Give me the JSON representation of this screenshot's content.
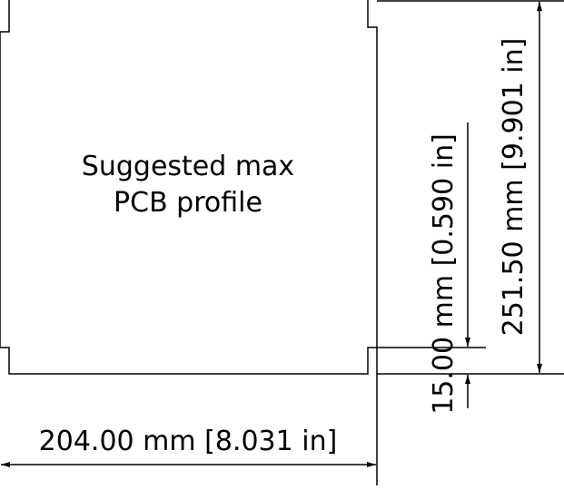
{
  "profile": {
    "label_lines": [
      "Suggested max",
      "PCB profile"
    ]
  },
  "dimensions": {
    "width": "204.00 mm [8.031 in]",
    "height": "251.50 mm [9.901 in]",
    "clearance": "15.00 mm [0.590 in]"
  }
}
